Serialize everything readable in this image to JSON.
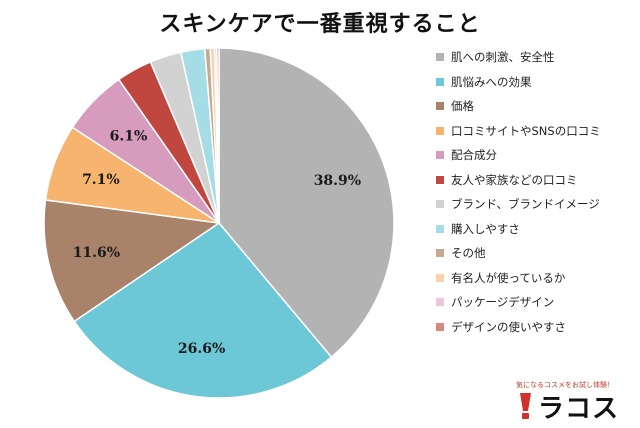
{
  "chart_data": {
    "type": "pie",
    "title": "スキンケアで一番重視すること",
    "start_angle_deg": 0,
    "direction": "clockwise",
    "slices": [
      {
        "label": "肌への刺激、安全性",
        "value": 38.9,
        "color": "#b3b3b3",
        "data_label": "38.9%"
      },
      {
        "label": "肌悩みへの効果",
        "value": 26.6,
        "color": "#6cc7d6",
        "data_label": "26.6%"
      },
      {
        "label": "価格",
        "value": 11.6,
        "color": "#a8836a",
        "data_label": "11.6%"
      },
      {
        "label": "口コミサイトやSNSの口コミ",
        "value": 7.1,
        "color": "#f7b46e",
        "data_label": "7.1%"
      },
      {
        "label": "配合成分",
        "value": 6.1,
        "color": "#d79bbd",
        "data_label": "6.1%"
      },
      {
        "label": "友人や家族などの口コミ",
        "value": 3.3,
        "color": "#c0473f",
        "data_label": ""
      },
      {
        "label": "ブランド、ブランドイメージ",
        "value": 2.9,
        "color": "#d2d2d2",
        "data_label": ""
      },
      {
        "label": "購入しやすさ",
        "value": 2.2,
        "color": "#a4dde6",
        "data_label": ""
      },
      {
        "label": "その他",
        "value": 0.5,
        "color": "#c7a893",
        "data_label": ""
      },
      {
        "label": "有名人が使っているか",
        "value": 0.4,
        "color": "#fcd3a8",
        "data_label": ""
      },
      {
        "label": "パッケージデザイン",
        "value": 0.2,
        "color": "#ecc6da",
        "data_label": ""
      },
      {
        "label": "デザインの使いやすさ",
        "value": 0.2,
        "color": "#d98a80",
        "data_label": ""
      }
    ],
    "legend_position": "right"
  },
  "brand": {
    "tagline": "気になるコスメをお試し体験！",
    "name": "ラコス",
    "mark_color": "#d0312d"
  }
}
